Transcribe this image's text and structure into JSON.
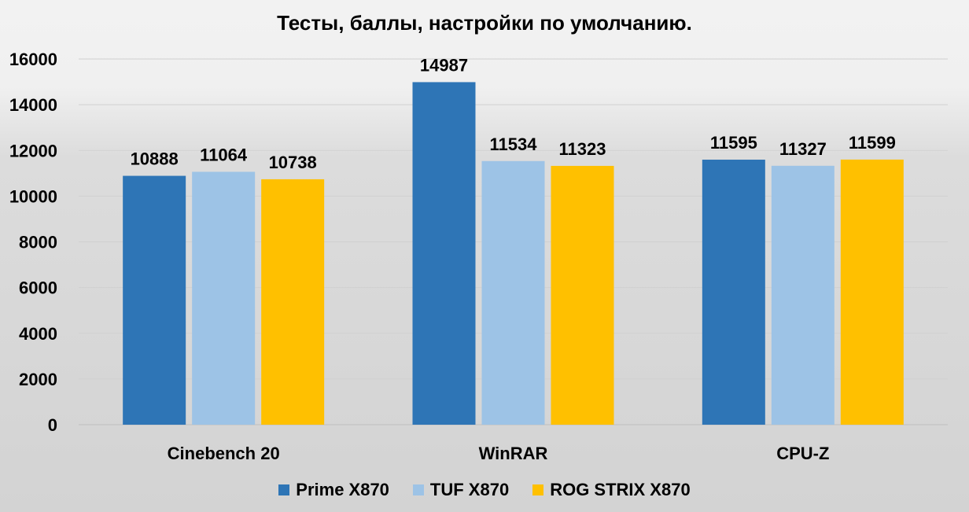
{
  "chart_data": {
    "type": "bar",
    "title": "Тесты, баллы, настройки по умолчанию.",
    "xlabel": "",
    "ylabel": "",
    "categories": [
      "Cinebench 20",
      "WinRAR",
      "CPU-Z"
    ],
    "series": [
      {
        "name": "Prime X870",
        "color": "#2e75b6",
        "values": [
          10888,
          14987,
          11595
        ]
      },
      {
        "name": "TUF X870",
        "color": "#9dc3e6",
        "values": [
          11064,
          11534,
          11327
        ]
      },
      {
        "name": "ROG STRIX X870",
        "color": "#ffc000",
        "values": [
          10738,
          11323,
          11599
        ]
      }
    ],
    "ylim": [
      0,
      16000
    ],
    "yticks": [
      0,
      2000,
      4000,
      6000,
      8000,
      10000,
      12000,
      14000,
      16000
    ],
    "grid": true,
    "data_labels": true,
    "legend_position": "bottom"
  }
}
